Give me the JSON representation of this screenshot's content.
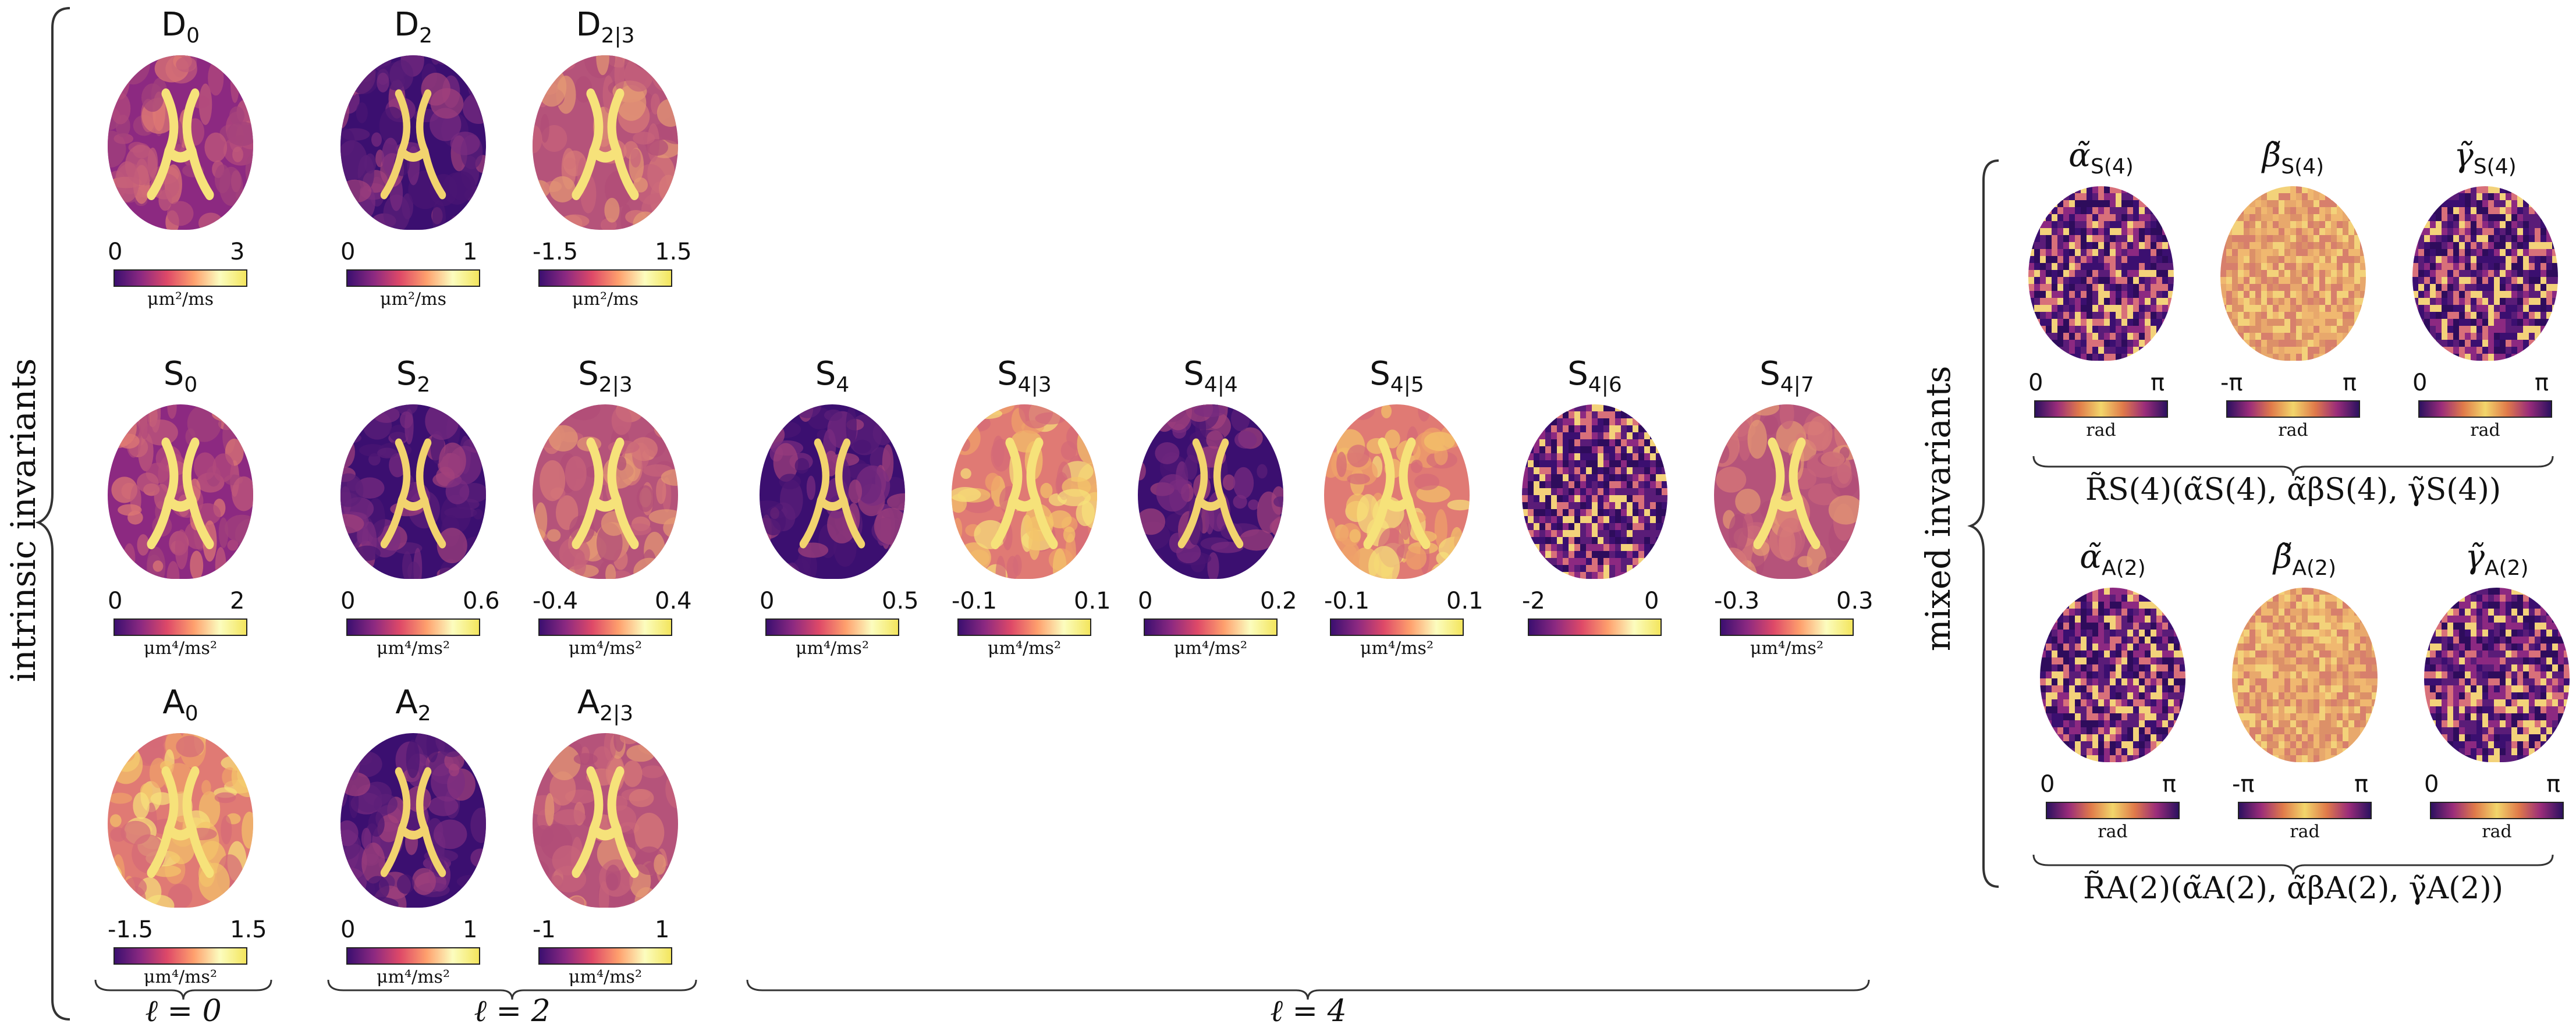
{
  "side_labels": {
    "intrinsic": "intrinsic invariants",
    "mixed": "mixed invariants"
  },
  "group_labels": {
    "l0": "ℓ = 0",
    "l2": "ℓ = 2",
    "l4": "ℓ = 4"
  },
  "panels": [
    {
      "id": "D0",
      "base": "D",
      "sub": "0",
      "min": "0",
      "max": "3",
      "unit": "μm²/ms",
      "tone": "mixed"
    },
    {
      "id": "D2",
      "base": "D",
      "sub": "2",
      "min": "0",
      "max": "1",
      "unit": "μm²/ms",
      "tone": "dark"
    },
    {
      "id": "D23",
      "base": "D",
      "sub": "2|3",
      "min": "-1.5",
      "max": "1.5",
      "unit": "μm²/ms",
      "tone": "mid"
    },
    {
      "id": "S0",
      "base": "S",
      "sub": "0",
      "min": "0",
      "max": "2",
      "unit": "μm⁴/ms²",
      "tone": "mixed"
    },
    {
      "id": "S2",
      "base": "S",
      "sub": "2",
      "min": "0",
      "max": "0.6",
      "unit": "μm⁴/ms²",
      "tone": "dark"
    },
    {
      "id": "S23",
      "base": "S",
      "sub": "2|3",
      "min": "-0.4",
      "max": "0.4",
      "unit": "μm⁴/ms²",
      "tone": "mid"
    },
    {
      "id": "A0",
      "base": "A",
      "sub": "0",
      "min": "-1.5",
      "max": "1.5",
      "unit": "μm⁴/ms²",
      "tone": "bright"
    },
    {
      "id": "A2",
      "base": "A",
      "sub": "2",
      "min": "0",
      "max": "1",
      "unit": "μm⁴/ms²",
      "tone": "dark"
    },
    {
      "id": "A23",
      "base": "A",
      "sub": "2|3",
      "min": "-1",
      "max": "1",
      "unit": "μm⁴/ms²",
      "tone": "mid"
    },
    {
      "id": "S4",
      "base": "S",
      "sub": "4",
      "min": "0",
      "max": "0.5",
      "unit": "μm⁴/ms²",
      "tone": "dark"
    },
    {
      "id": "S43",
      "base": "S",
      "sub": "4|3",
      "min": "-0.1",
      "max": "0.1",
      "unit": "μm⁴/ms²",
      "tone": "bright"
    },
    {
      "id": "S44",
      "base": "S",
      "sub": "4|4",
      "min": "0",
      "max": "0.2",
      "unit": "μm⁴/ms²",
      "tone": "dark"
    },
    {
      "id": "S45",
      "base": "S",
      "sub": "4|5",
      "min": "-0.1",
      "max": "0.1",
      "unit": "μm⁴/ms²",
      "tone": "bright"
    },
    {
      "id": "S46",
      "base": "S",
      "sub": "4|6",
      "min": "-2",
      "max": "0",
      "unit": "",
      "tone": "noise"
    },
    {
      "id": "S47",
      "base": "S",
      "sub": "4|7",
      "min": "-0.3",
      "max": "0.3",
      "unit": "μm⁴/ms²",
      "tone": "mid"
    }
  ],
  "mixed_panels": [
    {
      "id": "aS4",
      "greek": "α̃",
      "sub": "S(4)",
      "min": "0",
      "max": "π",
      "unit": "rad",
      "tone": "noise_dark"
    },
    {
      "id": "bS4",
      "greek": "β̃",
      "sub": "S(4)",
      "min": "-π",
      "max": "π",
      "unit": "rad",
      "tone": "noise_light"
    },
    {
      "id": "gS4",
      "greek": "γ̃",
      "sub": "S(4)",
      "min": "0",
      "max": "π",
      "unit": "rad",
      "tone": "noise_dark"
    },
    {
      "id": "aA2",
      "greek": "α̃",
      "sub": "A(2)",
      "min": "0",
      "max": "π",
      "unit": "rad",
      "tone": "noise_dark"
    },
    {
      "id": "bA2",
      "greek": "β̃",
      "sub": "A(2)",
      "min": "-π",
      "max": "π",
      "unit": "rad",
      "tone": "noise_light"
    },
    {
      "id": "gA2",
      "greek": "γ̃",
      "sub": "A(2)",
      "min": "0",
      "max": "π",
      "unit": "rad",
      "tone": "noise_dark"
    }
  ],
  "rotation_labels": {
    "S4": "R̃S(4)(α̃S(4), α̃βS(4), γ̃S(4))",
    "A2": "R̃A(2)(α̃A(2), α̃βA(2), γ̃A(2))"
  }
}
